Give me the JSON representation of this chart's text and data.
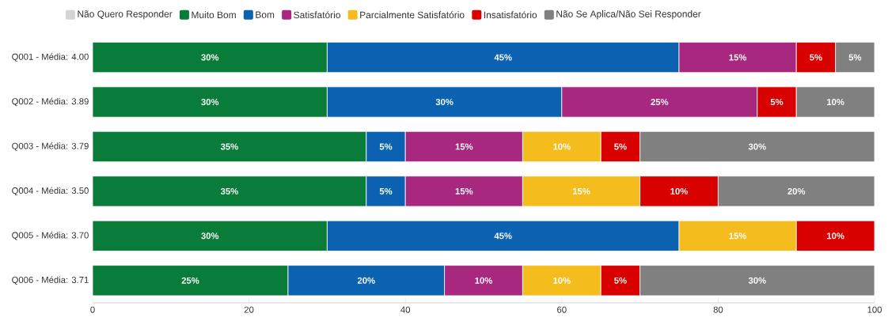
{
  "chart_data": {
    "type": "bar",
    "orientation": "horizontal",
    "stacked": true,
    "legend": "top left",
    "xlim": [
      0,
      100
    ],
    "xticks": [
      0,
      20,
      40,
      60,
      80,
      100
    ],
    "categories": [
      "Q001 - Média: 4.00",
      "Q002 - Média: 3.89",
      "Q003 - Média: 3.79",
      "Q004 - Média: 3.50",
      "Q005 - Média: 3.70",
      "Q006 - Média: 3.71"
    ],
    "series": [
      {
        "name": "Não Quero Responder",
        "color": "#d4d4d4",
        "values": [
          null,
          null,
          null,
          null,
          null,
          null
        ],
        "value_labels": [
          null,
          null,
          null,
          null,
          null,
          null
        ]
      },
      {
        "name": "Muito Bom",
        "color": "#0a7c3a",
        "values": [
          30,
          30,
          35,
          35,
          30,
          25
        ],
        "value_labels": [
          "30%",
          "30%",
          "35%",
          "35%",
          "30%",
          "25%"
        ]
      },
      {
        "name": "Bom",
        "color": "#0b62b0",
        "values": [
          45,
          30,
          5,
          5,
          45,
          20
        ],
        "value_labels": [
          "45%",
          "30%",
          "5%",
          "5%",
          "45%",
          "20%"
        ]
      },
      {
        "name": "Satisfatório",
        "color": "#a8287f",
        "values": [
          15,
          25,
          15,
          15,
          null,
          10
        ],
        "value_labels": [
          "15%",
          "25%",
          "15%",
          "15%",
          null,
          "10%"
        ]
      },
      {
        "name": "Parcialmente Satisfatório",
        "color": "#f4bd1d",
        "values": [
          null,
          null,
          10,
          15,
          15,
          10
        ],
        "value_labels": [
          null,
          null,
          "10%",
          "15%",
          "15%",
          "10%"
        ]
      },
      {
        "name": "Insatisfatório",
        "color": "#d90000",
        "values": [
          5,
          5,
          5,
          10,
          10,
          5
        ],
        "value_labels": [
          "5%",
          "5%",
          "5%",
          "10%",
          "10%",
          "5%"
        ]
      },
      {
        "name": "Não Se Aplica/Não Sei Responder",
        "color": "#808080",
        "values": [
          5,
          10,
          30,
          20,
          null,
          30
        ],
        "value_labels": [
          "5%",
          "10%",
          "30%",
          "20%",
          null,
          "30%"
        ]
      }
    ]
  }
}
